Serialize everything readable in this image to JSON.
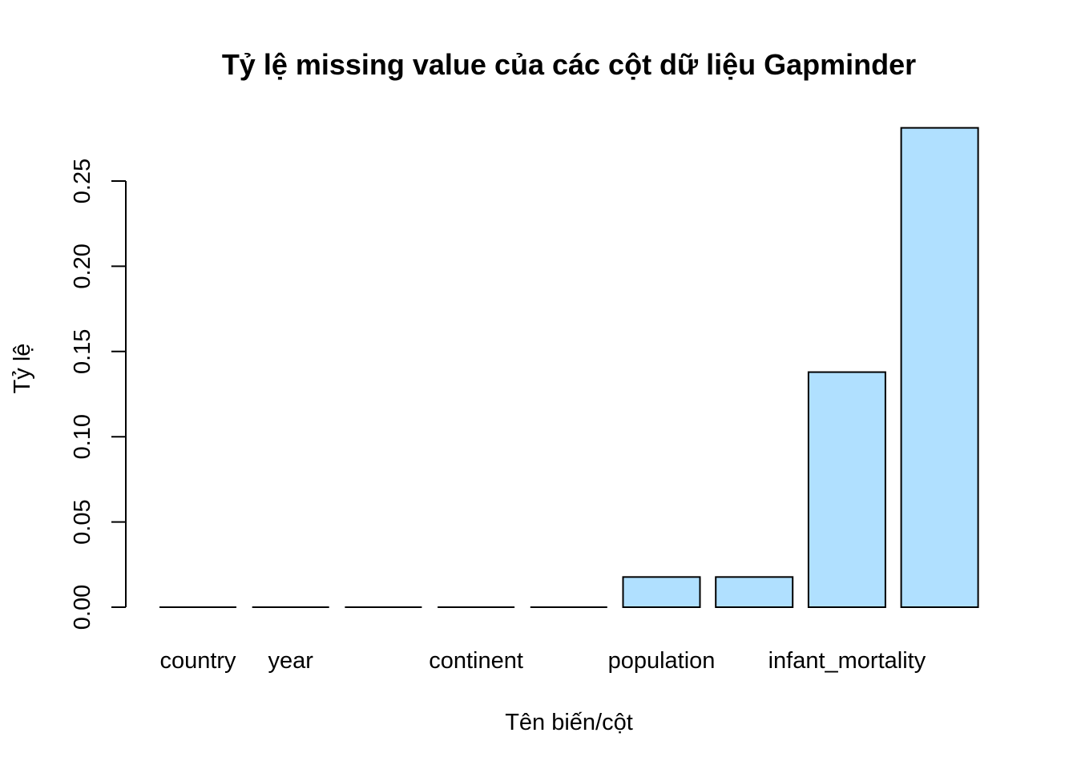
{
  "chart_data": {
    "type": "bar",
    "title": "Tỷ lệ missing value của các cột dữ liệu Gapminder",
    "xlabel": "Tên biến/cột",
    "ylabel": "Tỷ lệ",
    "categories": [
      "country",
      "year",
      "",
      "continent",
      "",
      "population",
      "",
      "infant_mortality",
      ""
    ],
    "values": [
      0,
      0,
      0,
      0,
      0,
      0.0177,
      0.0177,
      0.1379,
      0.2812
    ],
    "yticks": [
      0,
      0.05,
      0.1,
      0.15,
      0.2,
      0.25
    ],
    "ytick_labels": [
      "0.00",
      "0.05",
      "0.10",
      "0.15",
      "0.20",
      "0.25"
    ],
    "ylim": [
      0,
      0.2812
    ],
    "grid": false,
    "legend": "none",
    "bar_color": "#B0E0FF"
  }
}
